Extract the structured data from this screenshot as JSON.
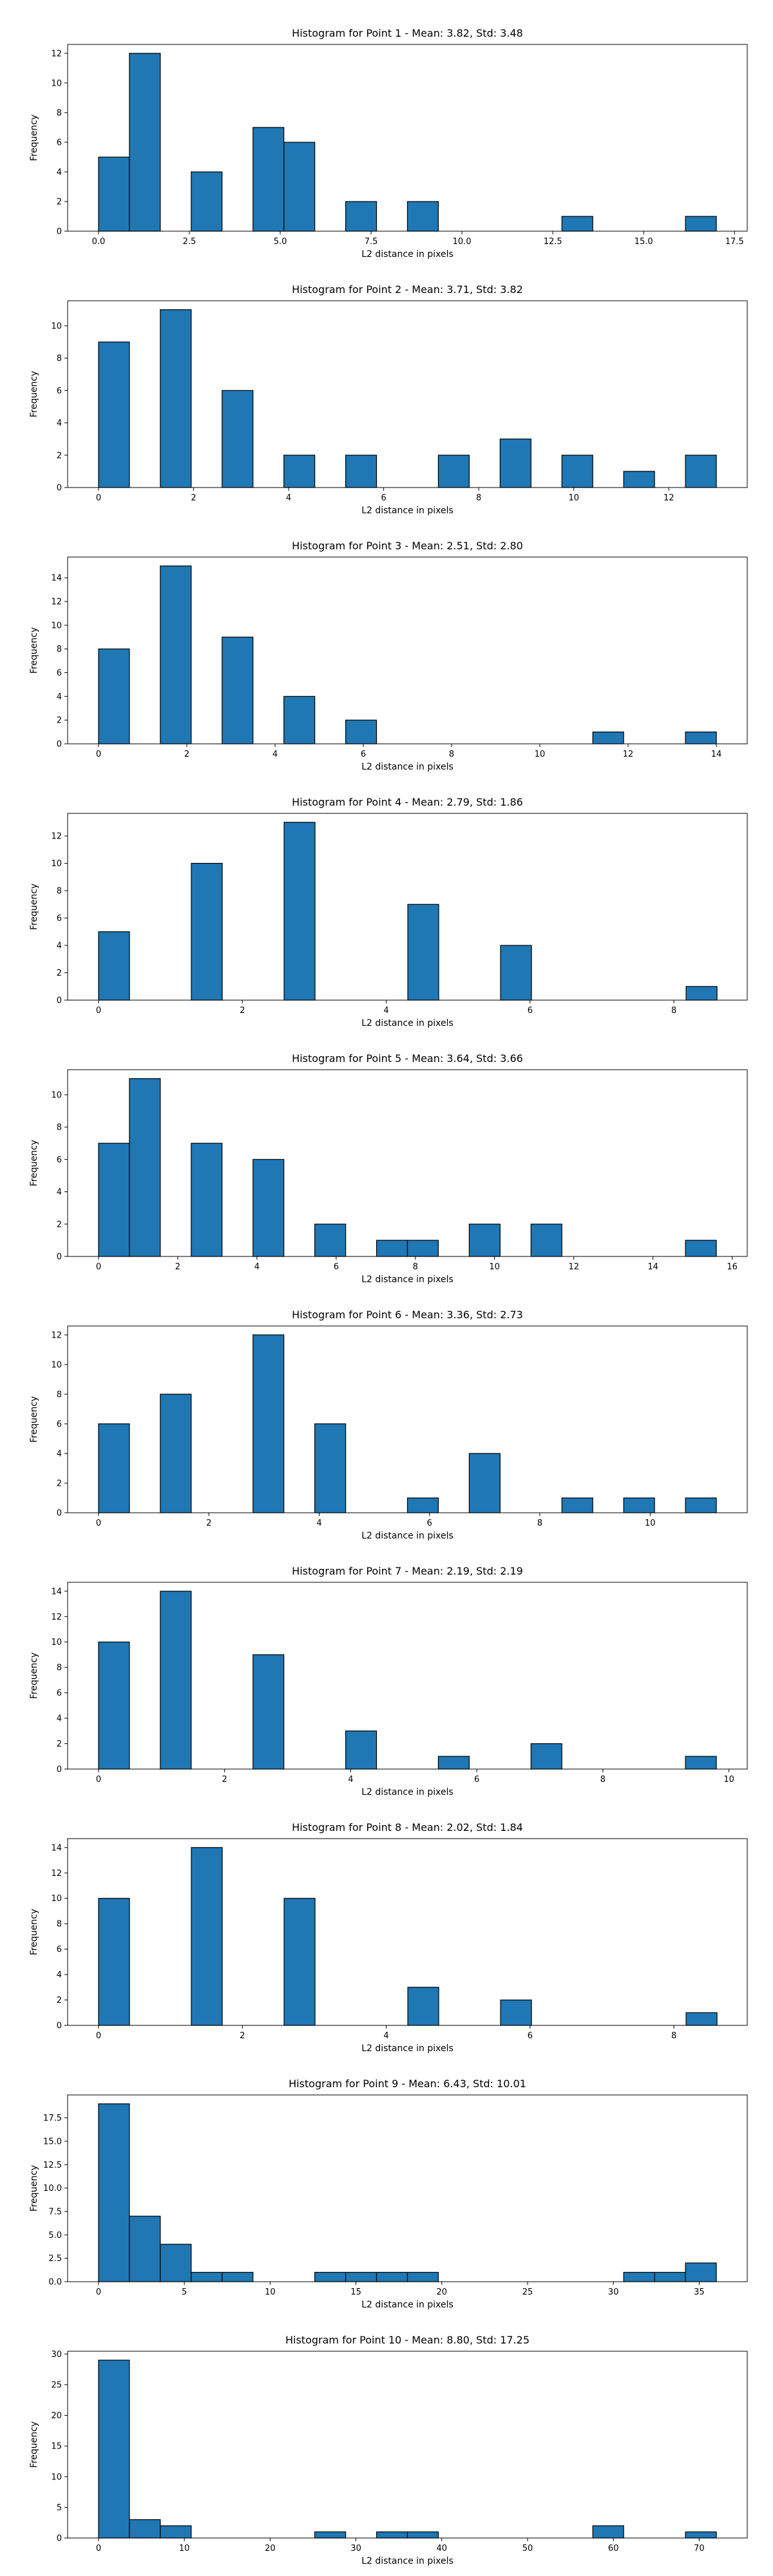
{
  "style": {
    "bar_color": "#1f77b4",
    "edge_color": "#000000"
  },
  "chart_data": [
    {
      "type": "bar",
      "title": "Histogram for Point 1 - Mean: 3.82, Std: 3.48",
      "xlabel": "L2 distance in pixels",
      "ylabel": "Frequency",
      "xlim": [
        -0.85,
        17.85
      ],
      "ylim": [
        0,
        12.6
      ],
      "xticks": [
        0.0,
        2.5,
        5.0,
        7.5,
        10.0,
        12.5,
        15.0,
        17.5
      ],
      "xtick_labels": [
        "0.0",
        "2.5",
        "5.0",
        "7.5",
        "10.0",
        "12.5",
        "15.0",
        "17.5"
      ],
      "yticks": [
        0,
        2,
        4,
        6,
        8,
        10,
        12
      ],
      "ytick_labels": [
        "0",
        "2",
        "4",
        "6",
        "8",
        "10",
        "12"
      ],
      "bins": [
        {
          "x0": 0.0,
          "x1": 0.85,
          "count": 5
        },
        {
          "x0": 0.85,
          "x1": 1.7,
          "count": 12
        },
        {
          "x0": 2.55,
          "x1": 3.4,
          "count": 4
        },
        {
          "x0": 4.25,
          "x1": 5.1,
          "count": 7
        },
        {
          "x0": 5.1,
          "x1": 5.95,
          "count": 6
        },
        {
          "x0": 6.8,
          "x1": 7.65,
          "count": 2
        },
        {
          "x0": 8.5,
          "x1": 9.35,
          "count": 2
        },
        {
          "x0": 12.75,
          "x1": 13.6,
          "count": 1
        },
        {
          "x0": 16.15,
          "x1": 17.0,
          "count": 1
        }
      ]
    },
    {
      "type": "bar",
      "title": "Histogram for Point 2 - Mean: 3.71, Std: 3.82",
      "xlabel": "L2 distance in pixels",
      "ylabel": "Frequency",
      "xlim": [
        -0.65,
        13.65
      ],
      "ylim": [
        0,
        11.55
      ],
      "xticks": [
        0,
        2,
        4,
        6,
        8,
        10,
        12
      ],
      "xtick_labels": [
        "0",
        "2",
        "4",
        "6",
        "8",
        "10",
        "12"
      ],
      "yticks": [
        0,
        2,
        4,
        6,
        8,
        10
      ],
      "ytick_labels": [
        "0",
        "2",
        "4",
        "6",
        "8",
        "10"
      ],
      "bins": [
        {
          "x0": 0.0,
          "x1": 0.65,
          "count": 9
        },
        {
          "x0": 1.3,
          "x1": 1.95,
          "count": 11
        },
        {
          "x0": 2.6,
          "x1": 3.25,
          "count": 6
        },
        {
          "x0": 3.9,
          "x1": 4.55,
          "count": 2
        },
        {
          "x0": 5.2,
          "x1": 5.85,
          "count": 2
        },
        {
          "x0": 7.15,
          "x1": 7.8,
          "count": 2
        },
        {
          "x0": 8.45,
          "x1": 9.1,
          "count": 3
        },
        {
          "x0": 9.75,
          "x1": 10.4,
          "count": 2
        },
        {
          "x0": 11.05,
          "x1": 11.7,
          "count": 1
        },
        {
          "x0": 12.35,
          "x1": 13.0,
          "count": 2
        }
      ]
    },
    {
      "type": "bar",
      "title": "Histogram for Point 3 - Mean: 2.51, Std: 2.80",
      "xlabel": "L2 distance in pixels",
      "ylabel": "Frequency",
      "xlim": [
        -0.7,
        14.7
      ],
      "ylim": [
        0,
        15.75
      ],
      "xticks": [
        0,
        2,
        4,
        6,
        8,
        10,
        12,
        14
      ],
      "xtick_labels": [
        "0",
        "2",
        "4",
        "6",
        "8",
        "10",
        "12",
        "14"
      ],
      "yticks": [
        0,
        2,
        4,
        6,
        8,
        10,
        12,
        14
      ],
      "ytick_labels": [
        "0",
        "2",
        "4",
        "6",
        "8",
        "10",
        "12",
        "14"
      ],
      "bins": [
        {
          "x0": 0.0,
          "x1": 0.7,
          "count": 8
        },
        {
          "x0": 1.4,
          "x1": 2.1,
          "count": 15
        },
        {
          "x0": 2.8,
          "x1": 3.5,
          "count": 9
        },
        {
          "x0": 4.2,
          "x1": 4.9,
          "count": 4
        },
        {
          "x0": 5.6,
          "x1": 6.3,
          "count": 2
        },
        {
          "x0": 11.2,
          "x1": 11.9,
          "count": 1
        },
        {
          "x0": 13.3,
          "x1": 14.0,
          "count": 1
        }
      ]
    },
    {
      "type": "bar",
      "title": "Histogram for Point 4 - Mean: 2.79, Std: 1.86",
      "xlabel": "L2 distance in pixels",
      "ylabel": "Frequency",
      "xlim": [
        -0.43,
        9.02
      ],
      "ylim": [
        0,
        13.65
      ],
      "xticks": [
        0,
        2,
        4,
        6,
        8
      ],
      "xtick_labels": [
        "0",
        "2",
        "4",
        "6",
        "8"
      ],
      "yticks": [
        0,
        2,
        4,
        6,
        8,
        10,
        12
      ],
      "ytick_labels": [
        "0",
        "2",
        "4",
        "6",
        "8",
        "10",
        "12"
      ],
      "bins": [
        {
          "x0": 0.0,
          "x1": 0.43,
          "count": 5
        },
        {
          "x0": 1.29,
          "x1": 1.72,
          "count": 10
        },
        {
          "x0": 2.58,
          "x1": 3.01,
          "count": 13
        },
        {
          "x0": 4.3,
          "x1": 4.73,
          "count": 7
        },
        {
          "x0": 5.59,
          "x1": 6.02,
          "count": 4
        },
        {
          "x0": 8.17,
          "x1": 8.6,
          "count": 1
        }
      ]
    },
    {
      "type": "bar",
      "title": "Histogram for Point 5 - Mean: 3.64, Std: 3.66",
      "xlabel": "L2 distance in pixels",
      "ylabel": "Frequency",
      "xlim": [
        -0.78,
        16.38
      ],
      "ylim": [
        0,
        11.55
      ],
      "xticks": [
        0,
        2,
        4,
        6,
        8,
        10,
        12,
        14,
        16
      ],
      "xtick_labels": [
        "0",
        "2",
        "4",
        "6",
        "8",
        "10",
        "12",
        "14",
        "16"
      ],
      "yticks": [
        0,
        2,
        4,
        6,
        8,
        10
      ],
      "ytick_labels": [
        "0",
        "2",
        "4",
        "6",
        "8",
        "10"
      ],
      "bins": [
        {
          "x0": 0.0,
          "x1": 0.78,
          "count": 7
        },
        {
          "x0": 0.78,
          "x1": 1.56,
          "count": 11
        },
        {
          "x0": 2.34,
          "x1": 3.12,
          "count": 7
        },
        {
          "x0": 3.9,
          "x1": 4.68,
          "count": 6
        },
        {
          "x0": 5.46,
          "x1": 6.24,
          "count": 2
        },
        {
          "x0": 7.02,
          "x1": 7.8,
          "count": 1
        },
        {
          "x0": 7.8,
          "x1": 8.58,
          "count": 1
        },
        {
          "x0": 9.36,
          "x1": 10.14,
          "count": 2
        },
        {
          "x0": 10.92,
          "x1": 11.7,
          "count": 2
        },
        {
          "x0": 14.82,
          "x1": 15.6,
          "count": 1
        }
      ]
    },
    {
      "type": "bar",
      "title": "Histogram for Point 6 - Mean: 3.36, Std: 2.73",
      "xlabel": "L2 distance in pixels",
      "ylabel": "Frequency",
      "xlim": [
        -0.56,
        11.76
      ],
      "ylim": [
        0,
        12.6
      ],
      "xticks": [
        0,
        2,
        4,
        6,
        8,
        10
      ],
      "xtick_labels": [
        "0",
        "2",
        "4",
        "6",
        "8",
        "10"
      ],
      "yticks": [
        0,
        2,
        4,
        6,
        8,
        10,
        12
      ],
      "ytick_labels": [
        "0",
        "2",
        "4",
        "6",
        "8",
        "10",
        "12"
      ],
      "bins": [
        {
          "x0": 0.0,
          "x1": 0.56,
          "count": 6
        },
        {
          "x0": 1.12,
          "x1": 1.68,
          "count": 8
        },
        {
          "x0": 2.8,
          "x1": 3.36,
          "count": 12
        },
        {
          "x0": 3.92,
          "x1": 4.48,
          "count": 6
        },
        {
          "x0": 5.6,
          "x1": 6.16,
          "count": 1
        },
        {
          "x0": 6.72,
          "x1": 7.28,
          "count": 4
        },
        {
          "x0": 8.4,
          "x1": 8.96,
          "count": 1
        },
        {
          "x0": 9.52,
          "x1": 10.08,
          "count": 1
        },
        {
          "x0": 10.64,
          "x1": 11.2,
          "count": 1
        }
      ]
    },
    {
      "type": "bar",
      "title": "Histogram for Point 7 - Mean: 2.19, Std: 2.19",
      "xlabel": "L2 distance in pixels",
      "ylabel": "Frequency",
      "xlim": [
        -0.49,
        10.29
      ],
      "ylim": [
        0,
        14.7
      ],
      "xticks": [
        0,
        2,
        4,
        6,
        8,
        10
      ],
      "xtick_labels": [
        "0",
        "2",
        "4",
        "6",
        "8",
        "10"
      ],
      "yticks": [
        0,
        2,
        4,
        6,
        8,
        10,
        12,
        14
      ],
      "ytick_labels": [
        "0",
        "2",
        "4",
        "6",
        "8",
        "10",
        "12",
        "14"
      ],
      "bins": [
        {
          "x0": 0.0,
          "x1": 0.49,
          "count": 10
        },
        {
          "x0": 0.98,
          "x1": 1.47,
          "count": 14
        },
        {
          "x0": 2.45,
          "x1": 2.94,
          "count": 9
        },
        {
          "x0": 3.92,
          "x1": 4.41,
          "count": 3
        },
        {
          "x0": 5.39,
          "x1": 5.88,
          "count": 1
        },
        {
          "x0": 6.86,
          "x1": 7.35,
          "count": 2
        },
        {
          "x0": 9.31,
          "x1": 9.8,
          "count": 1
        }
      ]
    },
    {
      "type": "bar",
      "title": "Histogram for Point 8 - Mean: 2.02, Std: 1.84",
      "xlabel": "L2 distance in pixels",
      "ylabel": "Frequency",
      "xlim": [
        -0.43,
        9.02
      ],
      "ylim": [
        0,
        14.7
      ],
      "xticks": [
        0,
        2,
        4,
        6,
        8
      ],
      "xtick_labels": [
        "0",
        "2",
        "4",
        "6",
        "8"
      ],
      "yticks": [
        0,
        2,
        4,
        6,
        8,
        10,
        12,
        14
      ],
      "ytick_labels": [
        "0",
        "2",
        "4",
        "6",
        "8",
        "10",
        "12",
        "14"
      ],
      "bins": [
        {
          "x0": 0.0,
          "x1": 0.43,
          "count": 10
        },
        {
          "x0": 1.29,
          "x1": 1.72,
          "count": 14
        },
        {
          "x0": 2.58,
          "x1": 3.01,
          "count": 10
        },
        {
          "x0": 4.3,
          "x1": 4.73,
          "count": 3
        },
        {
          "x0": 5.59,
          "x1": 6.02,
          "count": 2
        },
        {
          "x0": 8.17,
          "x1": 8.6,
          "count": 1
        }
      ]
    },
    {
      "type": "bar",
      "title": "Histogram for Point 9 - Mean: 6.43, Std: 10.01",
      "xlabel": "L2 distance in pixels",
      "ylabel": "Frequency",
      "xlim": [
        -1.8,
        37.8
      ],
      "ylim": [
        0,
        19.95
      ],
      "xticks": [
        0,
        5,
        10,
        15,
        20,
        25,
        30,
        35
      ],
      "xtick_labels": [
        "0",
        "5",
        "10",
        "15",
        "20",
        "25",
        "30",
        "35"
      ],
      "yticks": [
        0,
        2.5,
        5,
        7.5,
        10,
        12.5,
        15,
        17.5
      ],
      "ytick_labels": [
        "0.0",
        "2.5",
        "5.0",
        "7.5",
        "10.0",
        "12.5",
        "15.0",
        "17.5"
      ],
      "bins": [
        {
          "x0": 0.0,
          "x1": 1.8,
          "count": 19
        },
        {
          "x0": 1.8,
          "x1": 3.6,
          "count": 7
        },
        {
          "x0": 3.6,
          "x1": 5.4,
          "count": 4
        },
        {
          "x0": 5.4,
          "x1": 7.2,
          "count": 1
        },
        {
          "x0": 7.2,
          "x1": 9.0,
          "count": 1
        },
        {
          "x0": 12.6,
          "x1": 14.4,
          "count": 1
        },
        {
          "x0": 14.4,
          "x1": 16.2,
          "count": 1
        },
        {
          "x0": 16.2,
          "x1": 18.0,
          "count": 1
        },
        {
          "x0": 18.0,
          "x1": 19.8,
          "count": 1
        },
        {
          "x0": 30.6,
          "x1": 32.4,
          "count": 1
        },
        {
          "x0": 32.4,
          "x1": 34.2,
          "count": 1
        },
        {
          "x0": 34.2,
          "x1": 36.0,
          "count": 2
        }
      ]
    },
    {
      "type": "bar",
      "title": "Histogram for Point 10 - Mean: 8.80, Std: 17.25",
      "xlabel": "L2 distance in pixels",
      "ylabel": "Frequency",
      "xlim": [
        -3.6,
        75.6
      ],
      "ylim": [
        0,
        30.45
      ],
      "xticks": [
        0,
        10,
        20,
        30,
        40,
        50,
        60,
        70
      ],
      "xtick_labels": [
        "0",
        "10",
        "20",
        "30",
        "40",
        "50",
        "60",
        "70"
      ],
      "yticks": [
        0,
        5,
        10,
        15,
        20,
        25,
        30
      ],
      "ytick_labels": [
        "0",
        "5",
        "10",
        "15",
        "20",
        "25",
        "30"
      ],
      "bins": [
        {
          "x0": 0.0,
          "x1": 3.6,
          "count": 29
        },
        {
          "x0": 3.6,
          "x1": 7.2,
          "count": 3
        },
        {
          "x0": 7.2,
          "x1": 10.8,
          "count": 2
        },
        {
          "x0": 25.2,
          "x1": 28.8,
          "count": 1
        },
        {
          "x0": 32.4,
          "x1": 36.0,
          "count": 1
        },
        {
          "x0": 36.0,
          "x1": 39.6,
          "count": 1
        },
        {
          "x0": 57.6,
          "x1": 61.2,
          "count": 2
        },
        {
          "x0": 68.4,
          "x1": 72.0,
          "count": 1
        }
      ]
    }
  ]
}
